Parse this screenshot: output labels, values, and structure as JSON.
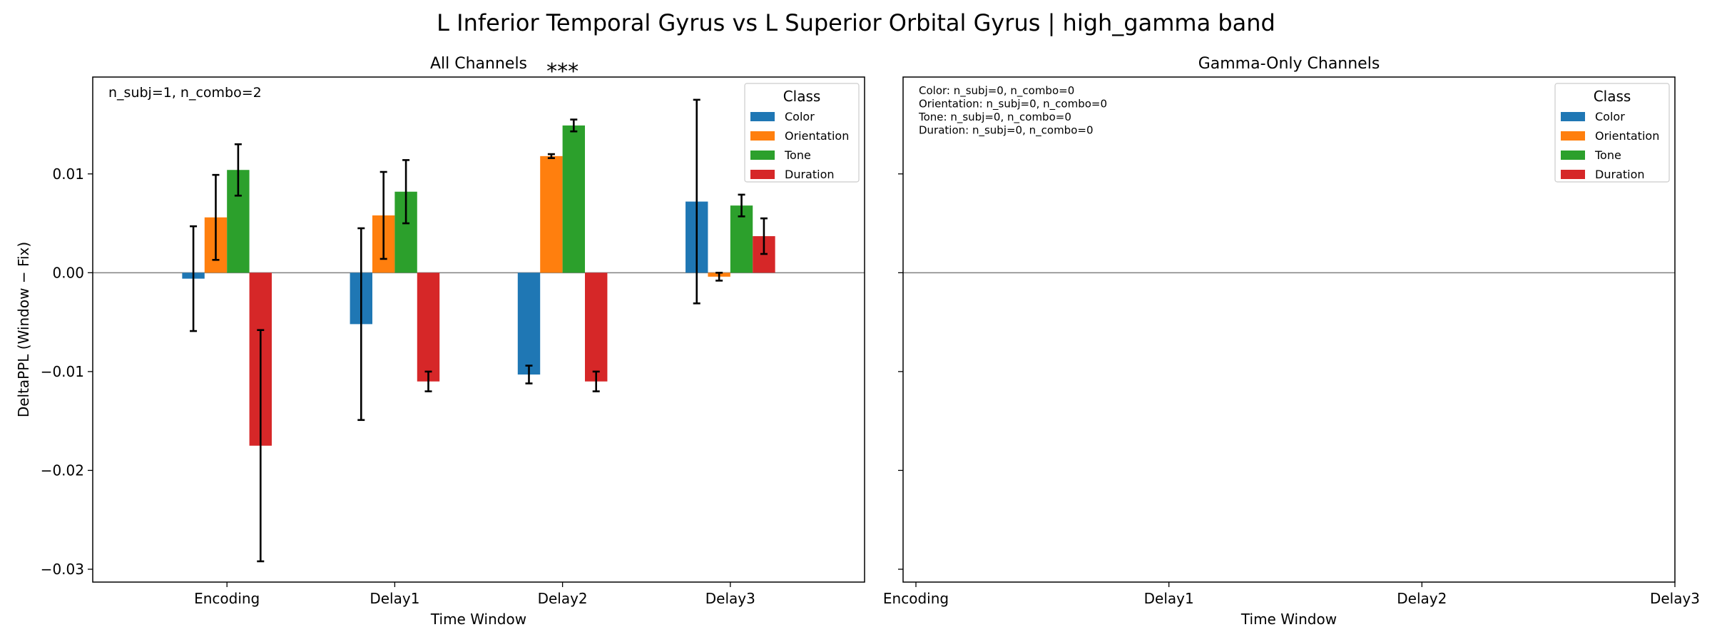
{
  "figure": {
    "suptitle": "L Inferior Temporal Gyrus vs L Superior Orbital Gyrus  |  high_gamma band"
  },
  "legend": {
    "title": "Class"
  },
  "colors": {
    "Color": "#1f77b4",
    "Orientation": "#ff7f0e",
    "Tone": "#2ca02c",
    "Duration": "#d62728",
    "significance": "#ff0000"
  },
  "chart_data": [
    {
      "type": "bar",
      "title": "All Channels",
      "xlabel": "Time Window",
      "ylabel": "DeltaPPL (Window − Fix)",
      "categories": [
        "Encoding",
        "Delay1",
        "Delay2",
        "Delay3"
      ],
      "ylim": [
        -0.0313,
        0.0198
      ],
      "yticks": [
        0.01,
        0.0,
        -0.01,
        -0.02,
        -0.03
      ],
      "ytick_labels": [
        "0.01",
        "0.00",
        "−0.01",
        "−0.02",
        "−0.03"
      ],
      "grid": false,
      "legend_position": "top-right",
      "annotation": "n_subj=1, n_combo=2",
      "significance": {
        "category": "Delay2",
        "label": "***"
      },
      "series": [
        {
          "name": "Color",
          "values": [
            -0.0006,
            -0.0052,
            -0.0103,
            0.0072
          ],
          "errors": [
            0.0053,
            0.0097,
            0.0009,
            0.0103
          ]
        },
        {
          "name": "Orientation",
          "values": [
            0.0056,
            0.0058,
            0.0118,
            -0.0004
          ],
          "errors": [
            0.0043,
            0.0044,
            0.0002,
            0.0004
          ]
        },
        {
          "name": "Tone",
          "values": [
            0.0104,
            0.0082,
            0.0149,
            0.0068
          ],
          "errors": [
            0.0026,
            0.0032,
            0.0006,
            0.0011
          ]
        },
        {
          "name": "Duration",
          "values": [
            -0.0175,
            -0.011,
            -0.011,
            0.0037
          ],
          "errors": [
            0.0117,
            0.001,
            0.001,
            0.0018
          ]
        }
      ]
    },
    {
      "type": "bar",
      "title": "Gamma-Only Channels",
      "xlabel": "Time Window",
      "categories": [
        "Encoding",
        "Delay1",
        "Delay2",
        "Delay3"
      ],
      "ylim": [
        -0.0313,
        0.0198
      ],
      "grid": false,
      "legend_position": "top-right",
      "annotation_lines": [
        "Color: n_subj=0, n_combo=0",
        "Orientation: n_subj=0, n_combo=0",
        "Tone: n_subj=0, n_combo=0",
        "Duration: n_subj=0, n_combo=0"
      ],
      "series": []
    }
  ]
}
